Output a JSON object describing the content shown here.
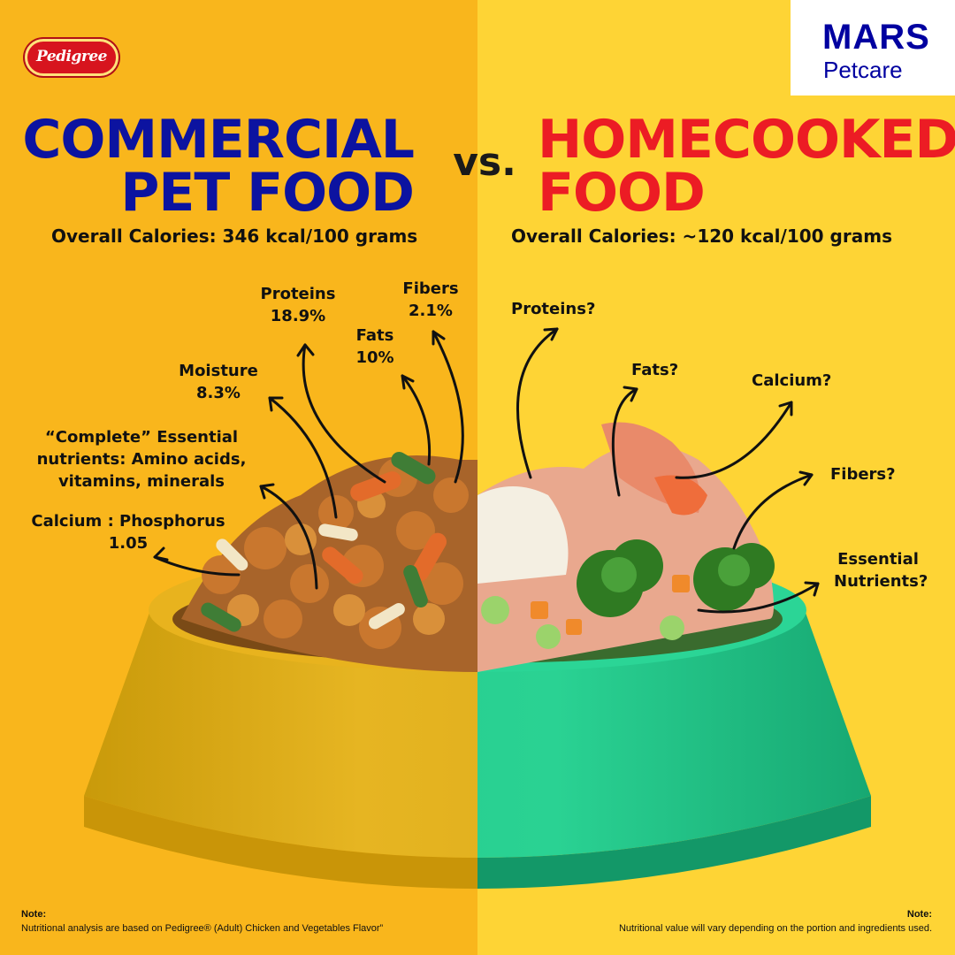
{
  "brand": {
    "pedigree": "Pedigree",
    "mars": "MARS",
    "petcare": "Petcare"
  },
  "colors": {
    "left_background": "#f9b61c",
    "right_background": "#fed435",
    "left_headline": "#0c13a0",
    "right_headline": "#ec1c24",
    "left_bowl": "#e0aa14",
    "right_bowl": "#22c98a"
  },
  "left": {
    "headline_line1": "COMMERCIAL",
    "headline_line2": "PET FOOD",
    "calories": "Overall Calories: 346 kcal/100 grams",
    "labels": {
      "proteins": "Proteins",
      "proteins_value": "18.9%",
      "fibers": "Fibers",
      "fibers_value": "2.1%",
      "fats": "Fats",
      "fats_value": "10%",
      "moisture": "Moisture",
      "moisture_value": "8.3%",
      "complete_line1": "“Complete” Essential",
      "complete_line2": "nutrients: Amino acids,",
      "complete_line3": "vitamins, minerals",
      "calcium_phosphorus": "Calcium : Phosphorus",
      "calcium_phosphorus_value": "1.05"
    },
    "note_title": "Note:",
    "note_text": "Nutritional analysis are based on Pedigree® (Adult) Chicken and Vegetables Flavor”"
  },
  "vs": "vs.",
  "right": {
    "headline_line1": "HOMECOOKED",
    "headline_line2": "FOOD",
    "calories": "Overall Calories: ~120  kcal/100 grams",
    "labels": {
      "proteins": "Proteins?",
      "fats": "Fats?",
      "calcium": "Calcium?",
      "fibers": "Fibers?",
      "essential_line1": "Essential",
      "essential_line2": "Nutrients?"
    },
    "note_title": "Note:",
    "note_text": "Nutritional value will vary depending on the portion and ingredients used."
  }
}
